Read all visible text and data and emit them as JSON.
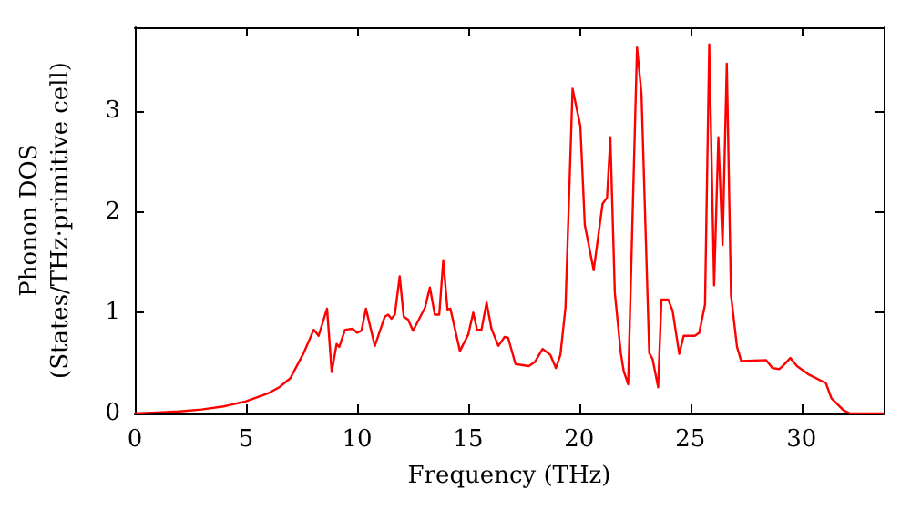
{
  "chart_data": {
    "type": "line",
    "xlabel": "Frequency (THz)",
    "ylabel": "Phonon DOS\n(States/THz·primitive cell)",
    "xlim": [
      0,
      33.7
    ],
    "xticks": [
      0,
      5,
      10,
      15,
      20,
      25,
      30
    ],
    "ylim": [
      0,
      3.83
    ],
    "yticks": [
      0,
      1,
      2,
      3
    ],
    "grid": false,
    "marker": "none",
    "line_style": "solid",
    "series": [
      {
        "color": "#ff0000",
        "x": [
          0,
          1,
          2,
          3,
          4,
          5,
          6,
          6.5,
          7,
          7.24,
          7.6,
          8.05,
          8.27,
          8.65,
          8.86,
          9.08,
          9.2,
          9.46,
          9.8,
          10.0,
          10.2,
          10.4,
          10.8,
          11.25,
          11.4,
          11.55,
          11.7,
          11.92,
          12.1,
          12.3,
          12.52,
          13.06,
          13.28,
          13.5,
          13.7,
          13.88,
          14.07,
          14.2,
          14.63,
          15.0,
          15.23,
          15.4,
          15.6,
          15.83,
          16.05,
          16.36,
          16.64,
          16.8,
          17.13,
          17.73,
          18.0,
          18.35,
          18.7,
          18.95,
          19.15,
          19.38,
          19.7,
          20.05,
          20.25,
          20.65,
          21.05,
          21.25,
          21.4,
          21.6,
          21.87,
          22.0,
          22.2,
          22.6,
          22.8,
          23.15,
          23.3,
          23.55,
          23.7,
          24.0,
          24.2,
          24.5,
          24.7,
          25.2,
          25.4,
          25.66,
          25.85,
          26.07,
          26.26,
          26.45,
          26.64,
          26.83,
          27.1,
          27.29,
          28.4,
          28.7,
          29.0,
          29.2,
          29.5,
          29.8,
          30.3,
          31.1,
          31.35,
          31.9,
          32.2,
          33.7
        ],
        "values": [
          0,
          0.01,
          0.02,
          0.04,
          0.07,
          0.12,
          0.2,
          0.26,
          0.35,
          0.45,
          0.6,
          0.83,
          0.77,
          1.04,
          0.41,
          0.69,
          0.66,
          0.83,
          0.84,
          0.8,
          0.82,
          1.04,
          0.67,
          0.96,
          0.98,
          0.94,
          0.98,
          1.36,
          0.96,
          0.93,
          0.82,
          1.05,
          1.25,
          0.98,
          0.98,
          1.52,
          1.03,
          1.04,
          0.62,
          0.78,
          1.0,
          0.83,
          0.83,
          1.1,
          0.84,
          0.67,
          0.76,
          0.75,
          0.49,
          0.47,
          0.51,
          0.64,
          0.58,
          0.45,
          0.58,
          1.05,
          3.22,
          2.85,
          1.87,
          1.42,
          2.08,
          2.14,
          2.74,
          1.2,
          0.6,
          0.42,
          0.29,
          3.63,
          3.17,
          0.6,
          0.54,
          0.26,
          1.13,
          1.13,
          1.02,
          0.59,
          0.77,
          0.77,
          0.8,
          1.08,
          3.66,
          1.27,
          2.74,
          1.67,
          3.47,
          1.17,
          0.66,
          0.52,
          0.53,
          0.45,
          0.44,
          0.48,
          0.55,
          0.47,
          0.39,
          0.3,
          0.15,
          0.03,
          0,
          0
        ]
      }
    ]
  }
}
